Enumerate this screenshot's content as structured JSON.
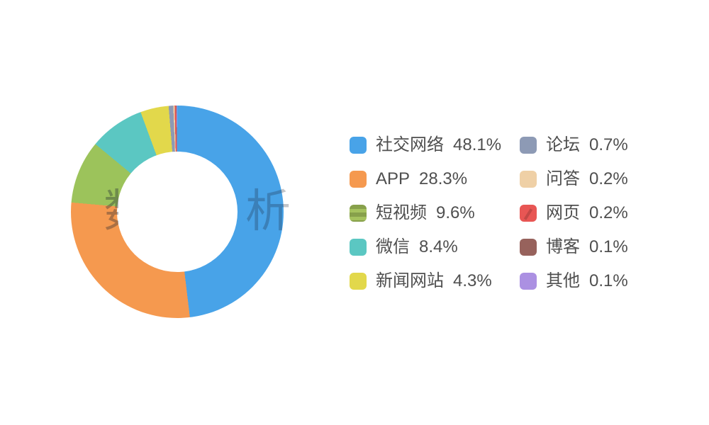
{
  "chart_data": {
    "type": "pie",
    "subtype": "donut",
    "title": "",
    "legend_position": "right",
    "legend_columns": 2,
    "legend_rows_per_column": 5,
    "start_angle_deg": 0,
    "direction": "clockwise",
    "inner_radius_ratio": 0.567,
    "items": [
      {
        "label": "社交网络",
        "value": 48.1,
        "percent_label": "48.1%",
        "color": "#48a3e8"
      },
      {
        "label": "APP",
        "value": 28.3,
        "percent_label": "28.3%",
        "color": "#f5994f"
      },
      {
        "label": "短视频",
        "value": 9.6,
        "percent_label": "9.6%",
        "color": "#9cc35b"
      },
      {
        "label": "微信",
        "value": 8.4,
        "percent_label": "8.4%",
        "color": "#5bc7c2"
      },
      {
        "label": "新闻网站",
        "value": 4.3,
        "percent_label": "4.3%",
        "color": "#e2d84b"
      },
      {
        "label": "论坛",
        "value": 0.7,
        "percent_label": "0.7%",
        "color": "#8d9ab5"
      },
      {
        "label": "问答",
        "value": 0.2,
        "percent_label": "0.2%",
        "color": "#efd0a6"
      },
      {
        "label": "网页",
        "value": 0.2,
        "percent_label": "0.2%",
        "color": "#e85654"
      },
      {
        "label": "博客",
        "value": 0.1,
        "percent_label": "0.1%",
        "color": "#97625c"
      },
      {
        "label": "其他",
        "value": 0.1,
        "percent_label": "0.1%",
        "color": "#ab90e2"
      }
    ]
  },
  "watermark": {
    "visible_characters": {
      "partial": "数",
      "full": "析"
    }
  }
}
